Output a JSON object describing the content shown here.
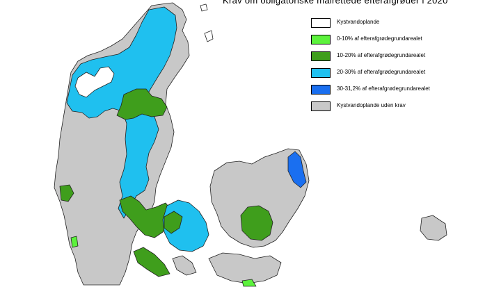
{
  "map": {
    "title": "Krav om obligatoriske målrettede efterafgrøder i 2020",
    "colors": {
      "white": "#ffffff",
      "light_green": "#5cf23c",
      "green": "#3f9e1c",
      "light_blue": "#1fc0ef",
      "blue": "#1a6ff0",
      "grey": "#c8c8c8",
      "border": "#222222"
    }
  },
  "legend": {
    "items": [
      {
        "label": "Kystvandoplande",
        "color": "#ffffff"
      },
      {
        "label": "0-10% af efterafgrødegrundarealet",
        "color": "#5cf23c"
      },
      {
        "label": "10-20% af efterafgrødegrundarealet",
        "color": "#3f9e1c"
      },
      {
        "label": "20-30% af efterafgrødegrundarealet",
        "color": "#1fc0ef"
      },
      {
        "label": "30-31,2% af efterafgrødegrundarealet",
        "color": "#1a6ff0"
      },
      {
        "label": "Kystvandoplande uden krav",
        "color": "#c8c8c8"
      }
    ]
  }
}
